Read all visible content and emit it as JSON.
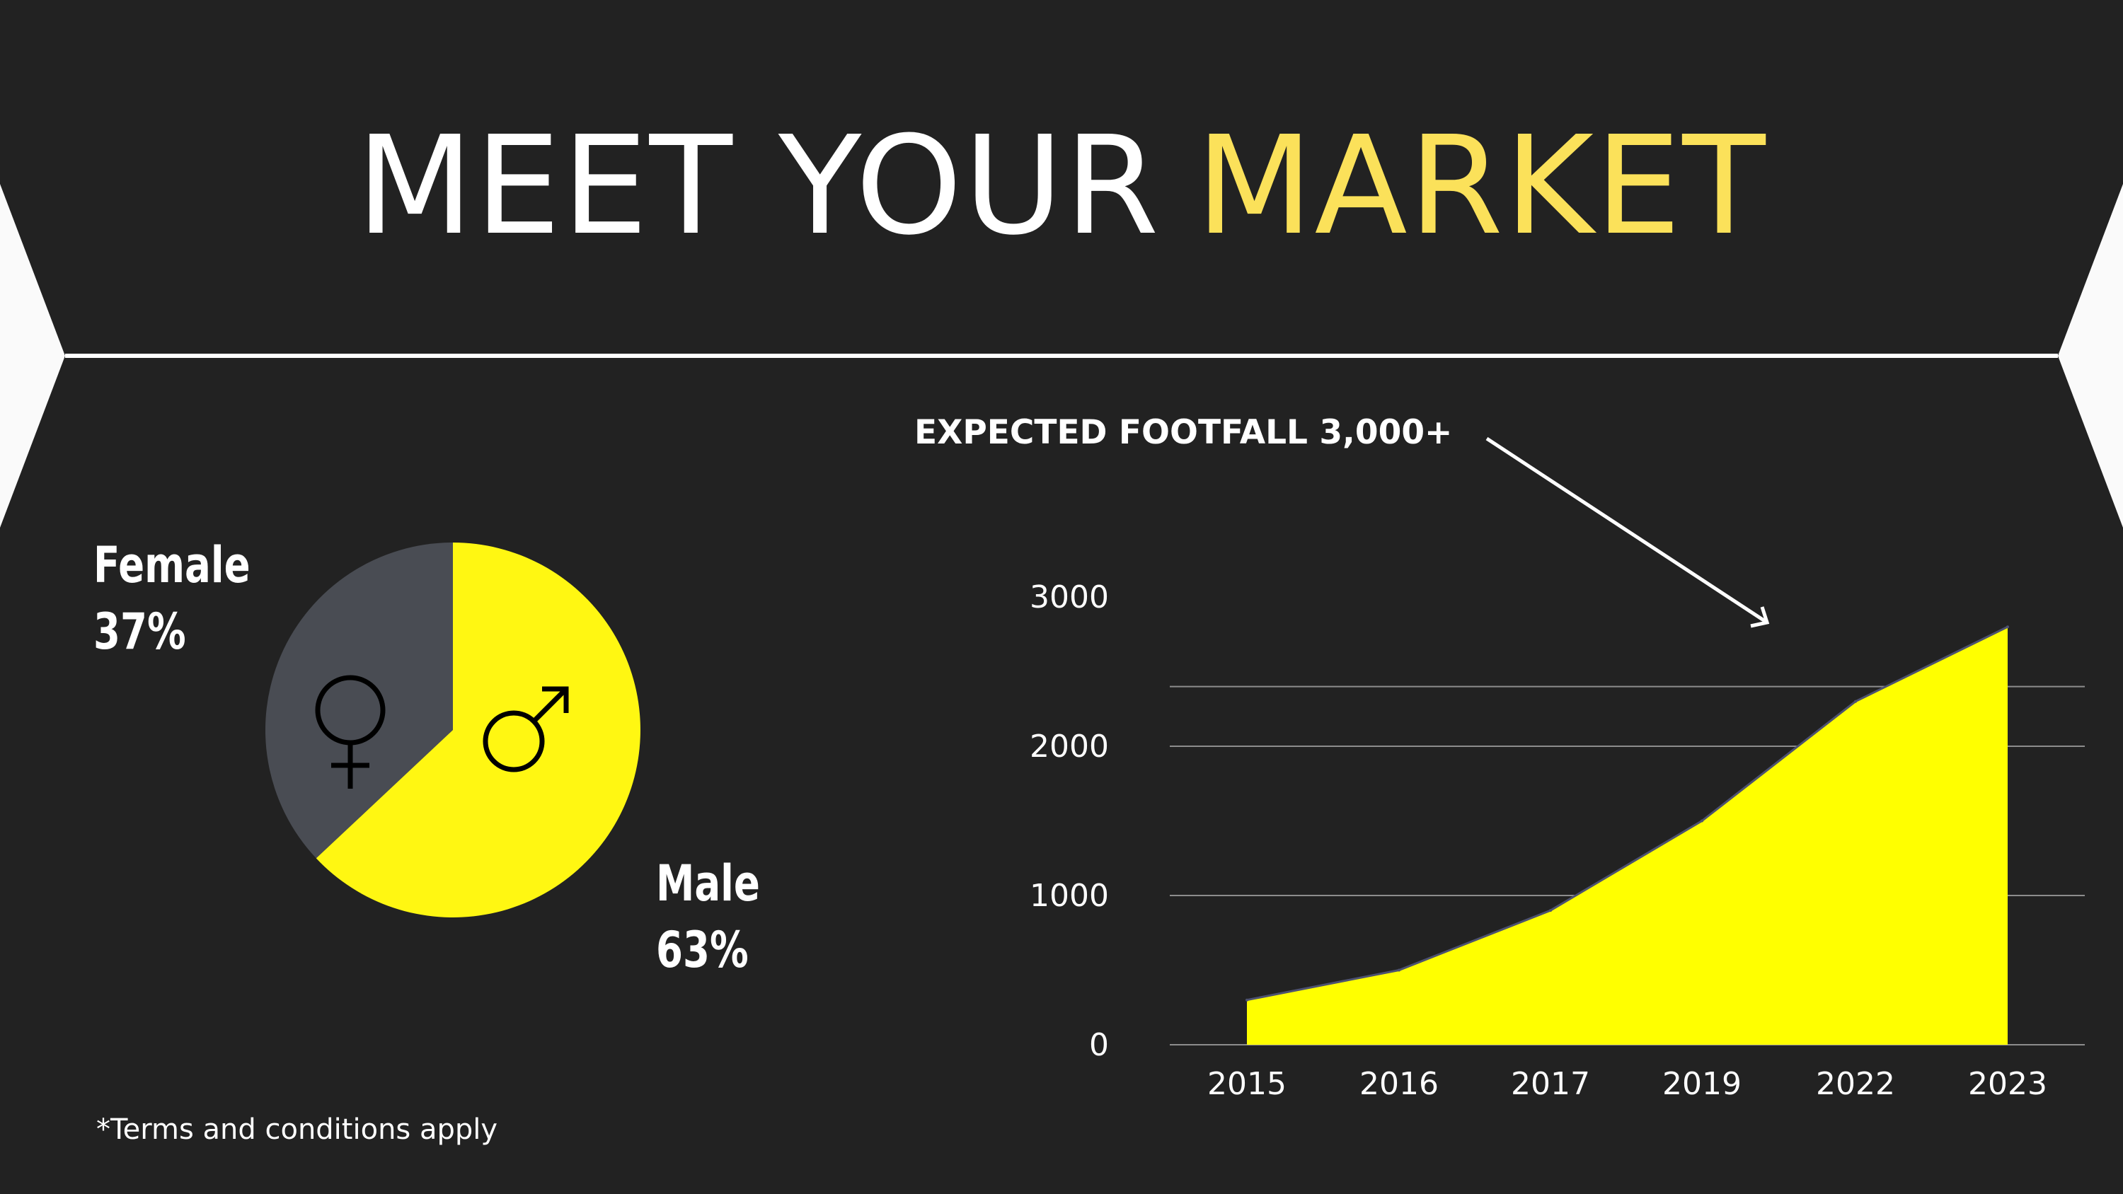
{
  "title": {
    "main": "MEET YOUR",
    "accent": "MARKET"
  },
  "annotation": "EXPECTED FOOTFALL 3,000+",
  "footnote": "*Terms and conditions apply",
  "colors": {
    "background": "#222222",
    "accent": "#fbe15a",
    "chart_yellow": "#ffff00",
    "pie_yellow": "#fff712",
    "pie_gray": "#494c53",
    "white": "#ffffff"
  },
  "chart_data": [
    {
      "type": "pie",
      "labels": [
        "Female",
        "Male"
      ],
      "values": [
        37,
        63
      ],
      "value_labels": [
        "37%",
        "63%"
      ],
      "icons": [
        "female-symbol-icon",
        "male-symbol-icon"
      ],
      "colors": [
        "#494c53",
        "#fff712"
      ]
    },
    {
      "type": "area",
      "x": [
        "2015",
        "2016",
        "2017",
        "2019",
        "2022",
        "2023"
      ],
      "values": [
        300,
        500,
        900,
        1500,
        2300,
        2800
      ],
      "ylim": [
        0,
        3000
      ],
      "yticks": [
        "0",
        "1000",
        "2000",
        "3000"
      ],
      "gridlines": [
        0,
        1000,
        2000,
        2400
      ],
      "grid": true,
      "legend": false
    }
  ]
}
